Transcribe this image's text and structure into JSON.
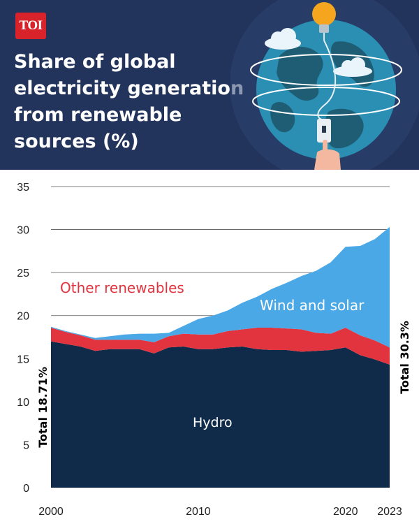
{
  "header": {
    "logo_text": "TOI",
    "title": "Share of global electricity generation from renewable sources (%)",
    "illustration": "globe-with-lightbulb-plug-icon"
  },
  "colors": {
    "header_bg": "#23345c",
    "hydro": "#0f2b49",
    "other_renewables": "#e1343f",
    "wind_and_solar": "#4aa8e6",
    "logo_red": "#d8232a"
  },
  "chart_data": {
    "type": "area",
    "stacked": true,
    "title": "Share of global electricity generation from renewable sources (%)",
    "ylim": [
      0,
      35
    ],
    "xlim": [
      2000,
      2023
    ],
    "yticks": [
      "0",
      "5",
      "10",
      "15",
      "20",
      "25",
      "30",
      "35"
    ],
    "xticks": [
      "2000",
      "2010",
      "2020",
      "2023"
    ],
    "grid": true,
    "x": [
      2000,
      2001,
      2002,
      2003,
      2004,
      2005,
      2006,
      2007,
      2008,
      2009,
      2010,
      2011,
      2012,
      2013,
      2014,
      2015,
      2016,
      2017,
      2018,
      2019,
      2020,
      2021,
      2022,
      2023
    ],
    "series": [
      {
        "name": "Hydro",
        "values": [
          17.0,
          16.7,
          16.4,
          15.9,
          16.1,
          16.1,
          16.1,
          15.6,
          16.3,
          16.4,
          16.1,
          16.1,
          16.3,
          16.4,
          16.1,
          16.0,
          16.0,
          15.8,
          15.9,
          16.0,
          16.3,
          15.4,
          14.9,
          14.3
        ]
      },
      {
        "name": "Other renewables",
        "values": [
          1.6,
          1.4,
          1.3,
          1.3,
          1.1,
          1.1,
          1.1,
          1.3,
          1.3,
          1.5,
          1.7,
          1.7,
          1.9,
          2.0,
          2.5,
          2.6,
          2.5,
          2.6,
          2.1,
          1.9,
          2.3,
          2.3,
          2.2,
          2.0
        ]
      },
      {
        "name": "Wind and solar",
        "values": [
          0.1,
          0.1,
          0.1,
          0.2,
          0.4,
          0.6,
          0.7,
          1.0,
          0.4,
          0.9,
          1.8,
          2.2,
          2.4,
          3.1,
          3.6,
          4.5,
          5.3,
          6.2,
          7.2,
          8.3,
          9.4,
          10.4,
          11.8,
          14.0
        ]
      }
    ],
    "annotations": [
      {
        "text": "Total 18.71%",
        "at": 2000
      },
      {
        "text": "Total 30.3%",
        "at": 2023
      }
    ],
    "series_labels": [
      "Hydro",
      "Other renewables",
      "Wind and solar"
    ]
  }
}
